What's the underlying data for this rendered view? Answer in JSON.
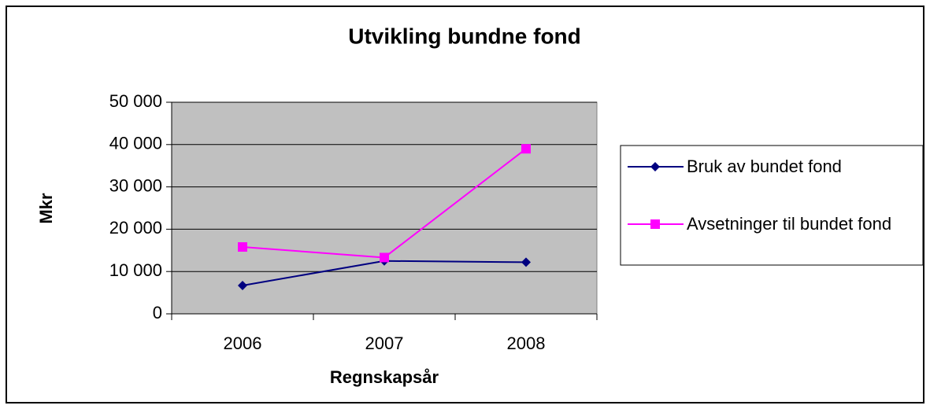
{
  "chart_data": {
    "type": "line",
    "title": "Utvikling bundne fond",
    "x_label": "Regnskapsår",
    "y_label": "Mkr",
    "categories": [
      "2006",
      "2007",
      "2008"
    ],
    "series": [
      {
        "name": "Bruk av bundet fond",
        "color": "#000080",
        "marker": "diamond",
        "values": [
          6700,
          12500,
          12200
        ]
      },
      {
        "name": "Avsetninger til bundet fond",
        "color": "#ff00ff",
        "marker": "square",
        "values": [
          15800,
          13300,
          39000
        ]
      }
    ],
    "ylim": [
      0,
      50000
    ],
    "yticks": [
      0,
      {
        "value": 10000,
        "label": "10 000"
      },
      {
        "value": 20000,
        "label": "20 000"
      },
      {
        "value": 30000,
        "label": "30 000"
      },
      {
        "value": 40000,
        "label": "40 000"
      },
      {
        "value": 50000,
        "label": "50 000"
      }
    ],
    "grid": true,
    "legend": "right"
  }
}
